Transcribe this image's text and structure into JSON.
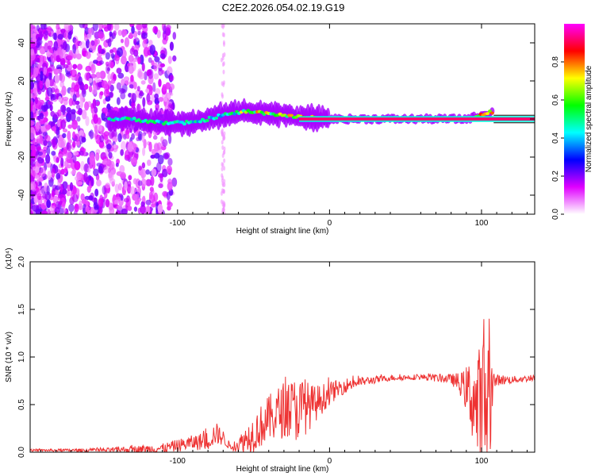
{
  "title": "C2E2.2026.054.02.19.G19",
  "chart_data": [
    {
      "type": "heatmap",
      "name": "spectrogram",
      "xlabel": "Height of straight line (km)",
      "ylabel": "Frequency (Hz)",
      "xlim": [
        -197,
        135
      ],
      "ylim": [
        -50,
        50
      ],
      "x_ticks": [
        -100,
        0,
        100
      ],
      "x_tick_labels": [
        "-100",
        "0",
        "100"
      ],
      "y_ticks": [
        -40,
        -20,
        0,
        20,
        40
      ],
      "y_tick_labels": [
        "-40",
        "-20",
        "0",
        "20",
        "40"
      ],
      "colorbar": {
        "label": "Normalized spectral amplitude",
        "range": [
          0,
          1
        ],
        "ticks": [
          0.0,
          0.2,
          0.4,
          0.6,
          0.8
        ],
        "tick_labels": [
          "0.0",
          "0.2",
          "0.4",
          "0.6",
          "0.8"
        ],
        "colors": [
          "#ffffff",
          "#e000ff",
          "#0000ff",
          "#00ffff",
          "#00ff00",
          "#ffff00",
          "#ff0000",
          "#ff00ff"
        ]
      },
      "ridge": {
        "x": [
          -145,
          -130,
          -110,
          -90,
          -70,
          -55,
          -40,
          -30,
          -20,
          0,
          50,
          90,
          100,
          108,
          135
        ],
        "freq_hz": [
          0,
          0,
          -2,
          -2,
          2,
          4,
          3,
          2,
          1,
          0,
          0,
          0,
          2,
          4,
          0
        ]
      }
    },
    {
      "type": "line",
      "name": "snr",
      "xlabel": "Height of straight line (km)",
      "ylabel": "SNR (10 * v/v)",
      "y_multiplier": "(x10⁴)",
      "xlim": [
        -197,
        135
      ],
      "ylim": [
        0,
        2.0
      ],
      "x_ticks": [
        -100,
        0,
        100
      ],
      "x_tick_labels": [
        "-100",
        "0",
        "100"
      ],
      "y_ticks": [
        0.0,
        0.5,
        1.0,
        1.5,
        2.0
      ],
      "y_tick_labels": [
        "0.0",
        "0.5",
        "1.0",
        "1.5",
        "2.0"
      ],
      "color": "#ee3333",
      "envelope": {
        "x": [
          -197,
          -150,
          -110,
          -90,
          -80,
          -75,
          -70,
          -65,
          -60,
          -50,
          -40,
          -30,
          -20,
          -10,
          0,
          10,
          20,
          30,
          40,
          60,
          70,
          80,
          88,
          95,
          98,
          100,
          103,
          105,
          108,
          110,
          120,
          135
        ],
        "base": [
          0.02,
          0.02,
          0.04,
          0.1,
          0.12,
          0.2,
          0.15,
          0.05,
          0.08,
          0.2,
          0.35,
          0.45,
          0.45,
          0.5,
          0.62,
          0.7,
          0.74,
          0.76,
          0.78,
          0.79,
          0.78,
          0.77,
          0.7,
          0.55,
          0.4,
          0.3,
          0.5,
          0.55,
          0.72,
          0.76,
          0.76,
          0.78
        ],
        "amp": [
          0.01,
          0.02,
          0.05,
          0.08,
          0.1,
          0.12,
          0.08,
          0.03,
          0.08,
          0.2,
          0.25,
          0.3,
          0.35,
          0.2,
          0.12,
          0.08,
          0.05,
          0.04,
          0.03,
          0.03,
          0.04,
          0.05,
          0.15,
          0.5,
          0.7,
          0.9,
          1.0,
          0.7,
          0.15,
          0.06,
          0.04,
          0.03
        ]
      }
    }
  ]
}
